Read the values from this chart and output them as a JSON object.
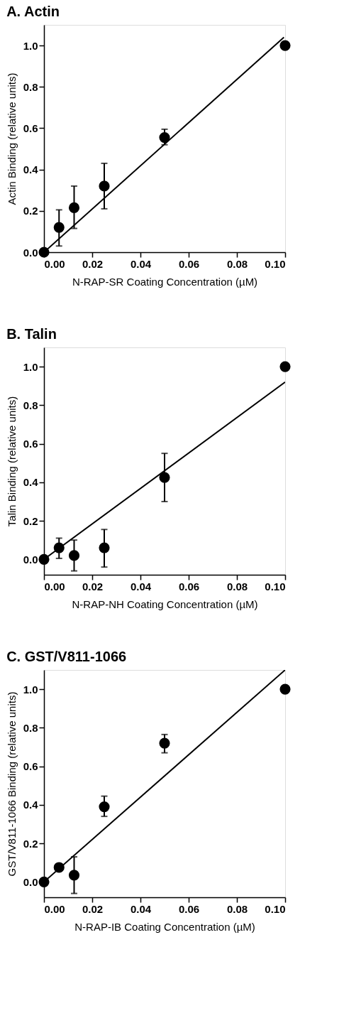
{
  "chart_data": [
    {
      "type": "scatter",
      "title": "A.  Actin",
      "xlabel": "N-RAP-SR Coating Concentration (µM)",
      "ylabel": "Actin Binding (relative units)",
      "marker": "circle",
      "grid": false,
      "xlim": [
        0,
        0.1
      ],
      "ylim": [
        0,
        1.1
      ],
      "xticks": [
        {
          "value": 0,
          "label": "0.00"
        },
        {
          "value": 0.02,
          "label": "0.02"
        },
        {
          "value": 0.04,
          "label": "0.04"
        },
        {
          "value": 0.06,
          "label": "0.06"
        },
        {
          "value": 0.08,
          "label": "0.08"
        },
        {
          "value": 0.1,
          "label": "0.10"
        }
      ],
      "yticks": [
        {
          "value": 0,
          "label": "0.0"
        },
        {
          "value": 0.2,
          "label": "0.2"
        },
        {
          "value": 0.4,
          "label": "0.4"
        },
        {
          "value": 0.6,
          "label": "0.6"
        },
        {
          "value": 0.8,
          "label": "0.8"
        },
        {
          "value": 1,
          "label": "1.0"
        }
      ],
      "series": [
        {
          "color": "#000000",
          "x": [
            0,
            0.00625,
            0.0125,
            0.025,
            0.05,
            0.1
          ],
          "values": [
            0,
            0.12,
            0.215,
            0.32,
            0.555,
            1.0
          ],
          "errors": [
            null,
            [
              0.03,
              0.205
            ],
            [
              0.115,
              0.32
            ],
            [
              0.21,
              0.43
            ],
            [
              0.52,
              0.595
            ],
            null
          ]
        },
        {
          "type": "line",
          "color": "#000000",
          "line_style": "solid",
          "marker": "none",
          "x": [
            0,
            0.0995
          ],
          "values": [
            0,
            1.04
          ]
        }
      ]
    },
    {
      "type": "scatter",
      "title": "B.  Talin",
      "xlabel": "N-RAP-NH Coating Concentration (µM)",
      "ylabel": "Talin Binding (relative units)",
      "marker": "circle",
      "grid": false,
      "xlim": [
        0,
        0.1
      ],
      "ylim": [
        -0.08,
        1.1
      ],
      "xticks": [
        {
          "value": 0,
          "label": "0.00"
        },
        {
          "value": 0.02,
          "label": "0.02"
        },
        {
          "value": 0.04,
          "label": "0.04"
        },
        {
          "value": 0.06,
          "label": "0.06"
        },
        {
          "value": 0.08,
          "label": "0.08"
        },
        {
          "value": 0.1,
          "label": "0.10"
        }
      ],
      "yticks": [
        {
          "value": 0,
          "label": "0.0"
        },
        {
          "value": 0.2,
          "label": "0.2"
        },
        {
          "value": 0.4,
          "label": "0.4"
        },
        {
          "value": 0.6,
          "label": "0.6"
        },
        {
          "value": 0.8,
          "label": "0.8"
        },
        {
          "value": 1,
          "label": "1.0"
        }
      ],
      "series": [
        {
          "color": "#000000",
          "x": [
            0,
            0.00625,
            0.0125,
            0.025,
            0.05,
            0.1
          ],
          "values": [
            0,
            0.06,
            0.02,
            0.06,
            0.425,
            1.0
          ],
          "errors": [
            null,
            [
              0.005,
              0.11
            ],
            [
              -0.06,
              0.1
            ],
            [
              -0.04,
              0.155
            ],
            [
              0.3,
              0.55
            ],
            null
          ]
        },
        {
          "type": "line",
          "color": "#000000",
          "line_style": "solid",
          "marker": "none",
          "x": [
            0,
            0.1
          ],
          "values": [
            0,
            0.92
          ]
        }
      ]
    },
    {
      "type": "scatter",
      "title": "C.    GST/V811-1066",
      "xlabel": "N-RAP-IB Coating Concentration (µM)",
      "ylabel": "GST/V811-1066 Binding (relative units)",
      "marker": "circle",
      "grid": false,
      "xlim": [
        0,
        0.1
      ],
      "ylim": [
        -0.08,
        1.1
      ],
      "xticks": [
        {
          "value": 0,
          "label": "0.00"
        },
        {
          "value": 0.02,
          "label": "0.02"
        },
        {
          "value": 0.04,
          "label": "0.04"
        },
        {
          "value": 0.06,
          "label": "0.06"
        },
        {
          "value": 0.08,
          "label": "0.08"
        },
        {
          "value": 0.1,
          "label": "0.10"
        }
      ],
      "yticks": [
        {
          "value": 0,
          "label": "0.0"
        },
        {
          "value": 0.2,
          "label": "0.2"
        },
        {
          "value": 0.4,
          "label": "0.4"
        },
        {
          "value": 0.6,
          "label": "0.6"
        },
        {
          "value": 0.8,
          "label": "0.8"
        },
        {
          "value": 1,
          "label": "1.0"
        }
      ],
      "series": [
        {
          "color": "#000000",
          "x": [
            0,
            0.00625,
            0.0125,
            0.025,
            0.05,
            0.1
          ],
          "values": [
            0,
            0.075,
            0.035,
            0.39,
            0.72,
            1.0
          ],
          "errors": [
            null,
            null,
            [
              -0.06,
              0.13
            ],
            [
              0.34,
              0.445
            ],
            [
              0.67,
              0.765
            ],
            null
          ]
        },
        {
          "type": "line",
          "color": "#000000",
          "line_style": "solid",
          "marker": "none",
          "x": [
            0,
            0.1
          ],
          "values": [
            0,
            1.1
          ]
        }
      ]
    }
  ]
}
